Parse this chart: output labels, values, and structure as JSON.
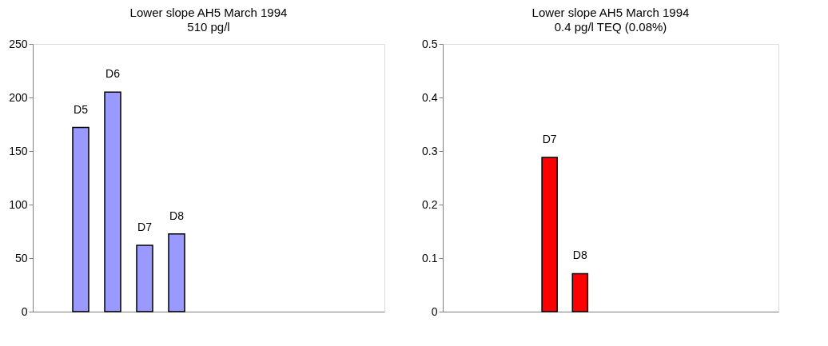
{
  "chart_data": [
    {
      "type": "bar",
      "title": "Lower slope AH5 March 1994",
      "subtitle": "510 pg/l",
      "categories": [
        null,
        null,
        null,
        null,
        null,
        null,
        null,
        null,
        null,
        null,
        null
      ],
      "values": [
        null,
        172,
        205,
        62,
        72.5,
        null,
        null,
        null,
        null,
        null,
        null
      ],
      "value_labels": [
        null,
        "D5",
        "D6",
        "D7",
        "D8",
        null,
        null,
        null,
        null,
        null,
        null
      ],
      "color": "#9999ff",
      "ylim": [
        0,
        250
      ],
      "yticks": [
        0,
        50,
        100,
        150,
        200,
        250
      ],
      "tick_labels": "y",
      "grid": false
    },
    {
      "type": "bar",
      "title": "Lower slope AH5 March 1994",
      "subtitle": "0.4 pg/l TEQ (0.08%)",
      "categories": [
        null,
        null,
        null,
        null,
        null,
        null,
        null,
        null,
        null,
        null,
        null
      ],
      "values": [
        null,
        null,
        null,
        0.288,
        0.071,
        null,
        null,
        null,
        null,
        null,
        null
      ],
      "value_labels": [
        null,
        null,
        null,
        "D7",
        "D8",
        null,
        null,
        null,
        null,
        null,
        null
      ],
      "color": "#ff0000",
      "ylim": [
        0,
        0.5
      ],
      "yticks": [
        0,
        0.1,
        0.2,
        0.3,
        0.4,
        0.5
      ],
      "tick_labels": "y",
      "grid": false
    }
  ]
}
